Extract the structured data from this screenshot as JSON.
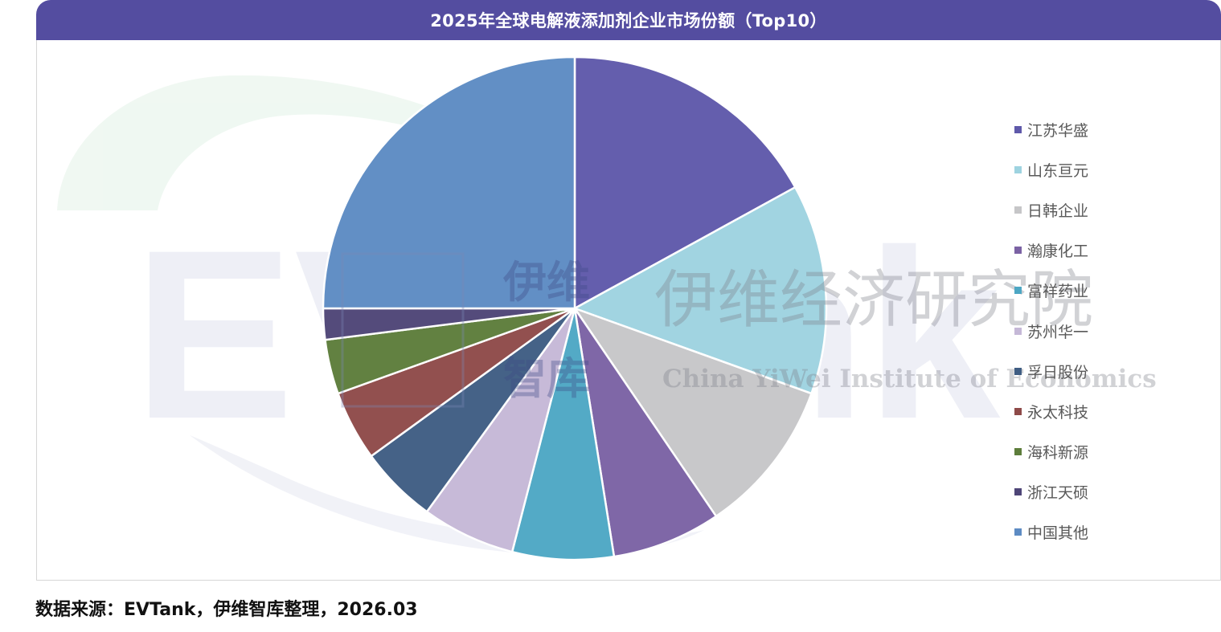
{
  "header": {
    "title": "2025年全球电解液添加剂企业市场份额（Top10）"
  },
  "watermark": {
    "logo_text": "EVTank",
    "brand_cn": "伊维",
    "brand_cn_2": "智库",
    "institute_cn": "伊维经济研究院",
    "institute_en": "China YiWei Institute of Economics"
  },
  "chart_data": {
    "type": "pie",
    "title": "2025年全球电解液添加剂企业市场份额（Top10）",
    "start_angle_deg": 0,
    "direction": "clockwise",
    "legend_position": "right",
    "slices": [
      {
        "label": "江苏华盛",
        "value": 17.0,
        "color": "#5f59aa"
      },
      {
        "label": "山东亘元",
        "value": 13.5,
        "color": "#9ed3e0"
      },
      {
        "label": "日韩企业",
        "value": 10.0,
        "color": "#c6c6c8"
      },
      {
        "label": "瀚康化工",
        "value": 7.0,
        "color": "#7b62a4"
      },
      {
        "label": "富祥药业",
        "value": 6.5,
        "color": "#4da7c4"
      },
      {
        "label": "苏州华一",
        "value": 6.0,
        "color": "#c5b8d7"
      },
      {
        "label": "孚日股份",
        "value": 5.0,
        "color": "#3f5d83"
      },
      {
        "label": "永太科技",
        "value": 4.5,
        "color": "#8e4a49"
      },
      {
        "label": "海科新源",
        "value": 3.5,
        "color": "#5d7d3b"
      },
      {
        "label": "浙江天硕",
        "value": 2.0,
        "color": "#4e4577"
      },
      {
        "label": "中国其他",
        "value": 25.0,
        "color": "#5d8bc3"
      }
    ]
  },
  "footer": {
    "source": "数据来源：EVTank，伊维智库整理，2026.03"
  }
}
